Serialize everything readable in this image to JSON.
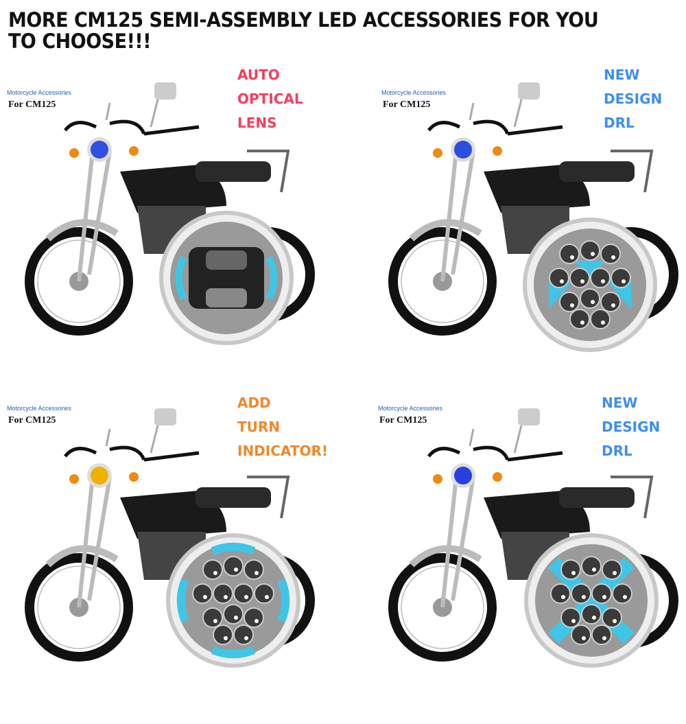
{
  "title": "MORE CM125 SEMI-ASSEMBLY LED ACCESSORIES FOR YOU TO CHOOSE!!!",
  "colors": {
    "red": "#f2405c",
    "blue": "#3d8ef0",
    "orange": "#f0872a",
    "drl_cyan": "#3fc6e6"
  },
  "panels": [
    {
      "brand": "Motorcycle Accessories",
      "model": "For CM125",
      "feature_lines": [
        "AUTO",
        "OPTICAL",
        "LENS"
      ],
      "feature_color": "#f2405c",
      "headlight": "optical-lens",
      "small_light": "#3050e0"
    },
    {
      "brand": "Motorcycle Accessories",
      "model": "For CM125",
      "feature_lines": [
        "NEW",
        "DESIGN",
        "DRL"
      ],
      "feature_color": "#3d8ef0",
      "headlight": "multi-led-drl",
      "small_light": "#2a4fe0"
    },
    {
      "brand": "Motorcycle Accessories",
      "model": "For CM125",
      "feature_lines": [
        "ADD",
        "TURN",
        "INDICATOR!"
      ],
      "feature_color": "#f0872a",
      "headlight": "led-turn-indicator",
      "small_light": "#f0b000"
    },
    {
      "brand": "Motorcycle Accessories",
      "model": "For CM125",
      "feature_lines": [
        "NEW",
        "DESIGN",
        "DRL"
      ],
      "feature_color": "#3d8ef0",
      "headlight": "x-drl",
      "small_light": "#2a3fe0"
    }
  ]
}
